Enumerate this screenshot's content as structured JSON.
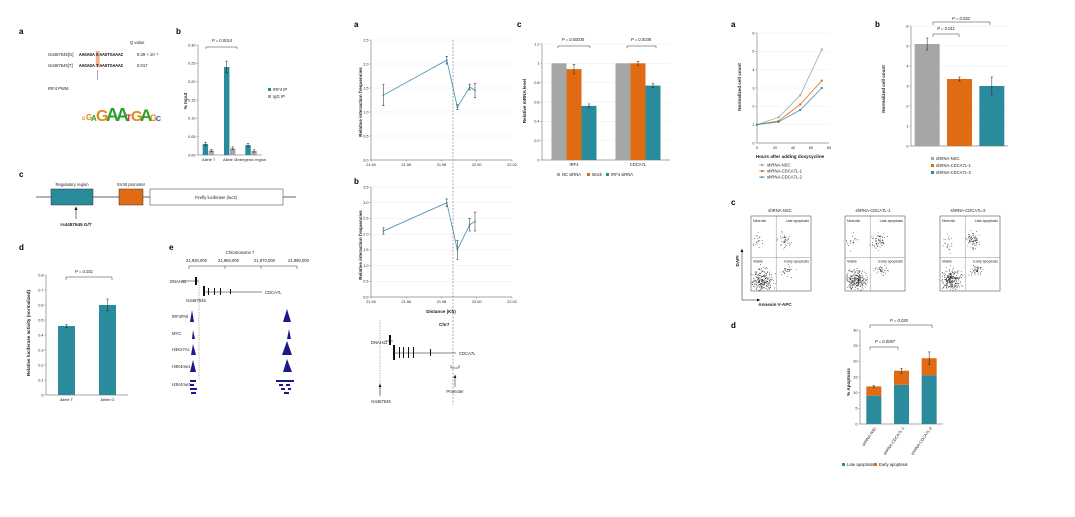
{
  "panel_labels": {
    "left_a": "a",
    "left_b": "b",
    "left_c": "c",
    "left_d": "d",
    "left_e": "e",
    "mid_a": "a",
    "mid_b": "b",
    "mid_c": "c",
    "right_a": "a",
    "right_b": "b",
    "right_c": "c",
    "right_d": "d"
  },
  "colors": {
    "teal": "#2a8b9c",
    "grey": "#a6a6a6",
    "orange": "#e06b12",
    "blue": "#3c8fb6",
    "navy": "#1a1a8a",
    "steel": "#3a8fb0"
  },
  "seq_panel": {
    "qvalue_header": "Q value",
    "rows": [
      {
        "id": "rs4487645[G]",
        "seq_a": "AAGAGA",
        "allele": "G",
        "seq_b": "AAGTGAAAC",
        "q": "9.39 × 10⁻⁶"
      },
      {
        "id": "rs4487645[T]",
        "seq_a": "AAGAGA",
        "allele": "T",
        "seq_b": "AAGTGAAAC",
        "q": "0.017"
      }
    ],
    "pwm_label": "IRF4 PWM"
  },
  "chip_bar": {
    "ylabel": "% Input",
    "pvalue": "P = 0.0014",
    "legend": [
      "IRF4 IP",
      "IgG IP"
    ]
  },
  "construct": {
    "regulatory": "Regulatory region",
    "promoter": "SV40 promoter",
    "luciferase": "Firefly luciferase (luc2)",
    "snp": "rs4487645 G/T"
  },
  "luc_bar": {
    "ylabel": "Relative luciferase activity (normalized)",
    "pvalue": "P = 0.031"
  },
  "tracks": {
    "chrom": "Chromosome 7",
    "ticks": [
      "21,930,000",
      "21,950,000",
      "21,970,000",
      "21,990,000"
    ],
    "gene1": "DNAH11",
    "gene2": "CDCA7L",
    "snp": "rs4487645",
    "track_labels": [
      "IRF4/Pol",
      "MYC",
      "H3K27Ac",
      "H3K4me1",
      "H3K4me3"
    ]
  },
  "interaction": {
    "ylabel": "Relative interaction frequencies",
    "xlabel": "Distance (Kb)",
    "chrom": "Chr7",
    "gene1": "DNAH11",
    "gene2": "CDCA7L",
    "snp": "rs4487645",
    "promoter": "Promoter"
  },
  "mrna_bar": {
    "ylabel": "Relative mRNA level",
    "pvalues": [
      "P = 0.00035",
      "P = 0.0038"
    ],
    "legend": [
      "NC siRNA",
      "Mock",
      "IRF4 siRNA"
    ]
  },
  "growth": {
    "ylabel": "Normalized cell count",
    "xlabel": "Hours after adding doxycycline",
    "legend": [
      "shRNA-NSC",
      "shRNA-CDCA7L-1",
      "shRNA-CDCA7L-2"
    ]
  },
  "cellcount_bar": {
    "ylabel": "Normalized cell count",
    "pvalues": [
      "P = 0.032",
      "P = 0.011"
    ],
    "legend": [
      "shRNA-NSC",
      "shRNA-CDCA7L-1",
      "shRNA-CDCA7L-2"
    ]
  },
  "flow": {
    "titles": [
      "shRNA-NSC",
      "shRNA-CDCA7L-1",
      "shRNA-CDCA7L-2"
    ],
    "quadrants": [
      "Necrotic",
      "Late apoptosis",
      "Viable",
      "Early apoptosis"
    ],
    "ylabel": "DAPI",
    "xlabel": "Annexin V-APC"
  },
  "apoptosis_bar": {
    "ylabel": "% Apoptosis",
    "pvalues": [
      "P = 0.030",
      "P = 0.0067"
    ],
    "legend": [
      "Late apoptosis",
      "Early apoptosis"
    ]
  },
  "chart_data": [
    {
      "type": "bar",
      "ylabel": "% Input",
      "categories": [
        "Allele T",
        "Allele G",
        "Intergenic region"
      ],
      "series": [
        {
          "name": "IRF4 IP",
          "values": [
            0.03,
            0.24,
            0.027
          ]
        },
        {
          "name": "IgG IP",
          "values": [
            0.012,
            0.018,
            0.011
          ]
        }
      ],
      "errors": [
        [
          0.005,
          0.016,
          0.005
        ],
        [
          0.003,
          0.004,
          0.003
        ]
      ],
      "ylim": [
        0,
        0.3
      ],
      "yticks": [
        "0.00",
        "0.05",
        "0.10",
        "0.15",
        "0.20",
        "0.25",
        "0.30"
      ]
    },
    {
      "type": "bar",
      "ylabel": "Relative luciferase activity (normalized)",
      "categories": [
        "Allele T",
        "Allele G"
      ],
      "values": [
        0.46,
        0.6
      ],
      "errors": [
        0.01,
        0.04
      ],
      "ylim": [
        0,
        0.8
      ],
      "yticks": [
        "0",
        "0.1",
        "0.2",
        "0.3",
        "0.4",
        "0.5",
        "0.6",
        "0.7",
        "0.8"
      ]
    },
    {
      "type": "line",
      "ylabel": "Relative interaction frequencies",
      "x": [
        21.947,
        21.983,
        21.989,
        21.996,
        21.999
      ],
      "y": [
        1.35,
        2.08,
        1.1,
        1.52,
        1.45
      ],
      "errors": [
        0.22,
        0.08,
        0.05,
        0.06,
        0.15
      ],
      "xlim": [
        21.94,
        22.02
      ],
      "ylim": [
        0,
        2.5
      ],
      "xticks": [
        "21.94",
        "21.96",
        "21.98",
        "22.00",
        "22.02"
      ],
      "yticks": [
        "0.0",
        "0.5",
        "1.0",
        "1.5",
        "2.0",
        "2.5"
      ]
    },
    {
      "type": "line",
      "ylabel": "Relative interaction frequencies",
      "xlabel": "Distance (Kb)",
      "x": [
        21.947,
        21.983,
        21.989,
        21.996,
        21.999
      ],
      "y": [
        2.1,
        3.0,
        1.5,
        2.3,
        2.4
      ],
      "errors": [
        0.1,
        0.12,
        0.3,
        0.2,
        0.3
      ],
      "xlim": [
        21.94,
        22.02
      ],
      "ylim": [
        0,
        3.5
      ],
      "xticks": [
        "21.94",
        "21.96",
        "21.98",
        "22.00",
        "22.02"
      ],
      "yticks": [
        "0.0",
        "0.5",
        "1.0",
        "1.5",
        "2.0",
        "2.5",
        "3.0",
        "3.5"
      ]
    },
    {
      "type": "bar",
      "ylabel": "Relative mRNA level",
      "categories": [
        "IRF4",
        "CDCA7L"
      ],
      "series": [
        {
          "name": "NC siRNA",
          "values": [
            1.0,
            1.0
          ]
        },
        {
          "name": "Mock",
          "values": [
            0.94,
            1.0
          ]
        },
        {
          "name": "IRF4 siRNA",
          "values": [
            0.56,
            0.77
          ]
        }
      ],
      "errors": [
        [
          0,
          0
        ],
        [
          0.05,
          0.02
        ],
        [
          0.02,
          0.02
        ]
      ],
      "ylim": [
        0,
        1.2
      ],
      "yticks": [
        "0",
        "0.2",
        "0.4",
        "0.6",
        "0.8",
        "1",
        "1.2"
      ]
    },
    {
      "type": "line",
      "ylabel": "Normalized cell count",
      "xlabel": "Hours after adding doxycycline",
      "x": [
        0,
        24,
        48,
        72
      ],
      "series": [
        {
          "name": "shRNA-NSC",
          "values": [
            1.0,
            1.4,
            2.6,
            5.1
          ]
        },
        {
          "name": "shRNA-CDCA7L-1",
          "values": [
            1.0,
            1.2,
            2.1,
            3.4
          ]
        },
        {
          "name": "shRNA-CDCA7L-2",
          "values": [
            1.0,
            1.15,
            1.8,
            3.0
          ]
        }
      ],
      "xlim": [
        0,
        80
      ],
      "ylim": [
        0,
        6
      ],
      "xticks": [
        "0",
        "20",
        "40",
        "60",
        "80"
      ],
      "yticks": [
        "0",
        "1",
        "2",
        "3",
        "4",
        "5",
        "6"
      ]
    },
    {
      "type": "bar",
      "ylabel": "Normalized cell count",
      "categories": [
        "shRNA-NSC",
        "shRNA-CDCA7L-1",
        "shRNA-CDCA7L-2"
      ],
      "values": [
        5.1,
        3.35,
        3.0
      ],
      "errors": [
        0.3,
        0.1,
        0.45
      ],
      "ylim": [
        0,
        6
      ],
      "yticks": [
        "0",
        "1",
        "2",
        "3",
        "4",
        "5",
        "6"
      ]
    },
    {
      "type": "bar",
      "ylabel": "% Apoptosis",
      "categories": [
        "shRNA-NSC",
        "shRNA-CDCA7L-1",
        "shRNA-CDCA7L-2"
      ],
      "series": [
        {
          "name": "Late apoptosis",
          "values": [
            9,
            12.5,
            15.5
          ]
        },
        {
          "name": "Early apoptosis",
          "values": [
            3,
            4.5,
            5.5
          ]
        }
      ],
      "errors": [
        0.3,
        0.8,
        2.0
      ],
      "ylim": [
        0,
        30
      ],
      "yticks": [
        "0",
        "5",
        "10",
        "15",
        "20",
        "25",
        "30"
      ]
    }
  ]
}
